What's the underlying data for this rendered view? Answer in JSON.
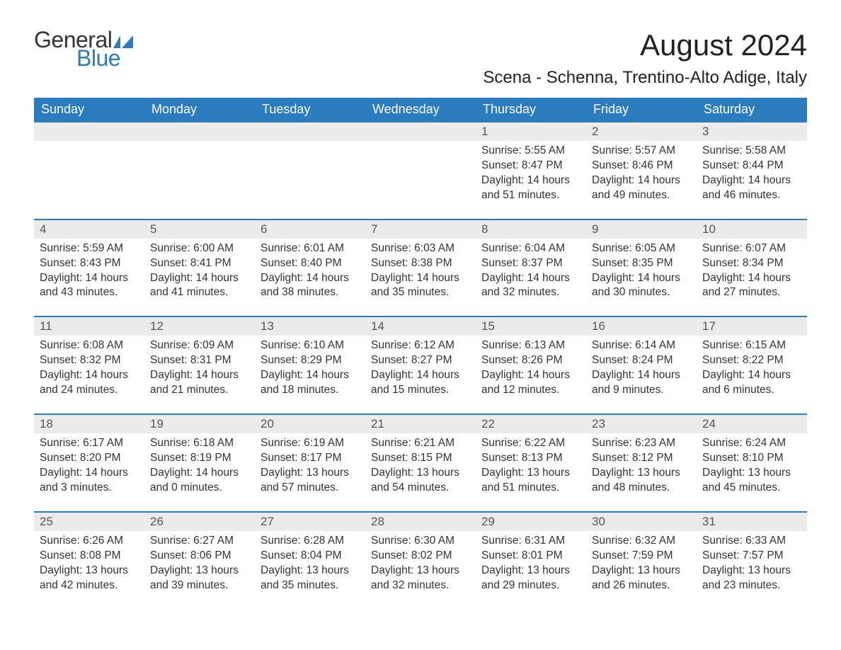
{
  "brand": {
    "word1": "General",
    "word2": "Blue",
    "color_text": "#333333",
    "color_accent": "#2b7bbf"
  },
  "title": "August 2024",
  "location": "Scena - Schenna, Trentino-Alto Adige, Italy",
  "colors": {
    "header_bg": "#2b7bbf",
    "header_text": "#ffffff",
    "daynum_bg": "#ebebeb",
    "daynum_text": "#555555",
    "body_text": "#333333",
    "page_bg": "#ffffff",
    "row_border": "#2b7bbf"
  },
  "typography": {
    "title_fontsize": 42,
    "location_fontsize": 24,
    "header_fontsize": 18,
    "daynum_fontsize": 17,
    "body_fontsize": 15.5,
    "font_family": "Arial"
  },
  "day_headers": [
    "Sunday",
    "Monday",
    "Tuesday",
    "Wednesday",
    "Thursday",
    "Friday",
    "Saturday"
  ],
  "weeks": [
    [
      null,
      null,
      null,
      null,
      {
        "n": "1",
        "sr": "Sunrise: 5:55 AM",
        "ss": "Sunset: 8:47 PM",
        "dl": "Daylight: 14 hours and 51 minutes."
      },
      {
        "n": "2",
        "sr": "Sunrise: 5:57 AM",
        "ss": "Sunset: 8:46 PM",
        "dl": "Daylight: 14 hours and 49 minutes."
      },
      {
        "n": "3",
        "sr": "Sunrise: 5:58 AM",
        "ss": "Sunset: 8:44 PM",
        "dl": "Daylight: 14 hours and 46 minutes."
      }
    ],
    [
      {
        "n": "4",
        "sr": "Sunrise: 5:59 AM",
        "ss": "Sunset: 8:43 PM",
        "dl": "Daylight: 14 hours and 43 minutes."
      },
      {
        "n": "5",
        "sr": "Sunrise: 6:00 AM",
        "ss": "Sunset: 8:41 PM",
        "dl": "Daylight: 14 hours and 41 minutes."
      },
      {
        "n": "6",
        "sr": "Sunrise: 6:01 AM",
        "ss": "Sunset: 8:40 PM",
        "dl": "Daylight: 14 hours and 38 minutes."
      },
      {
        "n": "7",
        "sr": "Sunrise: 6:03 AM",
        "ss": "Sunset: 8:38 PM",
        "dl": "Daylight: 14 hours and 35 minutes."
      },
      {
        "n": "8",
        "sr": "Sunrise: 6:04 AM",
        "ss": "Sunset: 8:37 PM",
        "dl": "Daylight: 14 hours and 32 minutes."
      },
      {
        "n": "9",
        "sr": "Sunrise: 6:05 AM",
        "ss": "Sunset: 8:35 PM",
        "dl": "Daylight: 14 hours and 30 minutes."
      },
      {
        "n": "10",
        "sr": "Sunrise: 6:07 AM",
        "ss": "Sunset: 8:34 PM",
        "dl": "Daylight: 14 hours and 27 minutes."
      }
    ],
    [
      {
        "n": "11",
        "sr": "Sunrise: 6:08 AM",
        "ss": "Sunset: 8:32 PM",
        "dl": "Daylight: 14 hours and 24 minutes."
      },
      {
        "n": "12",
        "sr": "Sunrise: 6:09 AM",
        "ss": "Sunset: 8:31 PM",
        "dl": "Daylight: 14 hours and 21 minutes."
      },
      {
        "n": "13",
        "sr": "Sunrise: 6:10 AM",
        "ss": "Sunset: 8:29 PM",
        "dl": "Daylight: 14 hours and 18 minutes."
      },
      {
        "n": "14",
        "sr": "Sunrise: 6:12 AM",
        "ss": "Sunset: 8:27 PM",
        "dl": "Daylight: 14 hours and 15 minutes."
      },
      {
        "n": "15",
        "sr": "Sunrise: 6:13 AM",
        "ss": "Sunset: 8:26 PM",
        "dl": "Daylight: 14 hours and 12 minutes."
      },
      {
        "n": "16",
        "sr": "Sunrise: 6:14 AM",
        "ss": "Sunset: 8:24 PM",
        "dl": "Daylight: 14 hours and 9 minutes."
      },
      {
        "n": "17",
        "sr": "Sunrise: 6:15 AM",
        "ss": "Sunset: 8:22 PM",
        "dl": "Daylight: 14 hours and 6 minutes."
      }
    ],
    [
      {
        "n": "18",
        "sr": "Sunrise: 6:17 AM",
        "ss": "Sunset: 8:20 PM",
        "dl": "Daylight: 14 hours and 3 minutes."
      },
      {
        "n": "19",
        "sr": "Sunrise: 6:18 AM",
        "ss": "Sunset: 8:19 PM",
        "dl": "Daylight: 14 hours and 0 minutes."
      },
      {
        "n": "20",
        "sr": "Sunrise: 6:19 AM",
        "ss": "Sunset: 8:17 PM",
        "dl": "Daylight: 13 hours and 57 minutes."
      },
      {
        "n": "21",
        "sr": "Sunrise: 6:21 AM",
        "ss": "Sunset: 8:15 PM",
        "dl": "Daylight: 13 hours and 54 minutes."
      },
      {
        "n": "22",
        "sr": "Sunrise: 6:22 AM",
        "ss": "Sunset: 8:13 PM",
        "dl": "Daylight: 13 hours and 51 minutes."
      },
      {
        "n": "23",
        "sr": "Sunrise: 6:23 AM",
        "ss": "Sunset: 8:12 PM",
        "dl": "Daylight: 13 hours and 48 minutes."
      },
      {
        "n": "24",
        "sr": "Sunrise: 6:24 AM",
        "ss": "Sunset: 8:10 PM",
        "dl": "Daylight: 13 hours and 45 minutes."
      }
    ],
    [
      {
        "n": "25",
        "sr": "Sunrise: 6:26 AM",
        "ss": "Sunset: 8:08 PM",
        "dl": "Daylight: 13 hours and 42 minutes."
      },
      {
        "n": "26",
        "sr": "Sunrise: 6:27 AM",
        "ss": "Sunset: 8:06 PM",
        "dl": "Daylight: 13 hours and 39 minutes."
      },
      {
        "n": "27",
        "sr": "Sunrise: 6:28 AM",
        "ss": "Sunset: 8:04 PM",
        "dl": "Daylight: 13 hours and 35 minutes."
      },
      {
        "n": "28",
        "sr": "Sunrise: 6:30 AM",
        "ss": "Sunset: 8:02 PM",
        "dl": "Daylight: 13 hours and 32 minutes."
      },
      {
        "n": "29",
        "sr": "Sunrise: 6:31 AM",
        "ss": "Sunset: 8:01 PM",
        "dl": "Daylight: 13 hours and 29 minutes."
      },
      {
        "n": "30",
        "sr": "Sunrise: 6:32 AM",
        "ss": "Sunset: 7:59 PM",
        "dl": "Daylight: 13 hours and 26 minutes."
      },
      {
        "n": "31",
        "sr": "Sunrise: 6:33 AM",
        "ss": "Sunset: 7:57 PM",
        "dl": "Daylight: 13 hours and 23 minutes."
      }
    ]
  ]
}
